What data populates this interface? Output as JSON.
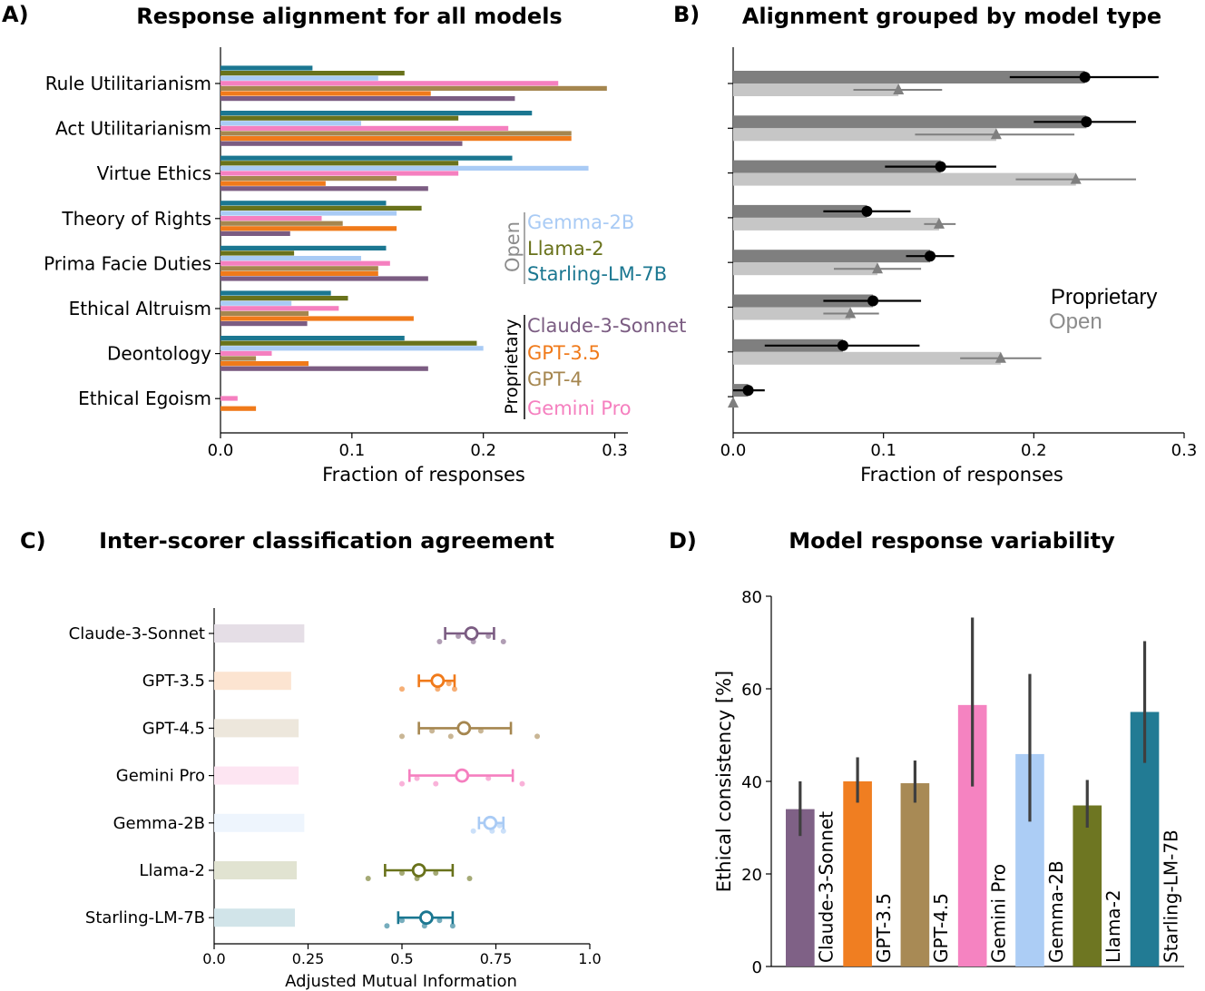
{
  "colors": {
    "Claude-3-Sonnet": "#7b5c82",
    "GPT-3.5": "#f07a1a",
    "GPT-4": "#a5864f",
    "GPT-4.5": "#a5864f",
    "Gemini Pro": "#f57fbf",
    "Gemma-2B": "#a9cbf5",
    "Llama-2": "#69721b",
    "Starling-LM-7B": "#1b7791",
    "proprietary_dark": "#7f7f7f",
    "open_light": "#c6c6c6"
  },
  "chart_data": [
    {
      "id": "A",
      "type": "bar",
      "orientation": "horizontal",
      "panel_label": "A)",
      "title": "Response alignment for all models",
      "xlabel": "Fraction of responses",
      "ylabel": "",
      "xlim": [
        0,
        0.31
      ],
      "xticks": [
        0.0,
        0.1,
        0.2,
        0.3
      ],
      "xticklabels": [
        "0.0",
        "0.1",
        "0.2",
        "0.3"
      ],
      "categories": [
        "Rule Utilitarianism",
        "Act Utilitarianism",
        "Virtue Ethics",
        "Theory of Rights",
        "Prima Facie Duties",
        "Ethical Altruism",
        "Deontology",
        "Ethical Egoism"
      ],
      "series": [
        {
          "name": "Starling-LM-7B",
          "values": [
            0.07,
            0.237,
            0.222,
            0.126,
            0.126,
            0.084,
            0.14,
            0.0
          ]
        },
        {
          "name": "Llama-2",
          "values": [
            0.14,
            0.181,
            0.181,
            0.153,
            0.056,
            0.097,
            0.195,
            0.0
          ]
        },
        {
          "name": "Gemma-2B",
          "values": [
            0.12,
            0.107,
            0.28,
            0.134,
            0.107,
            0.054,
            0.2,
            0.0
          ]
        },
        {
          "name": "Gemini Pro",
          "values": [
            0.257,
            0.219,
            0.181,
            0.077,
            0.129,
            0.09,
            0.039,
            0.013
          ]
        },
        {
          "name": "GPT-4",
          "values": [
            0.294,
            0.267,
            0.134,
            0.093,
            0.12,
            0.067,
            0.027,
            0.0
          ]
        },
        {
          "name": "GPT-3.5",
          "values": [
            0.16,
            0.267,
            0.08,
            0.134,
            0.12,
            0.147,
            0.067,
            0.027
          ]
        },
        {
          "name": "Claude-3-Sonnet",
          "values": [
            0.224,
            0.184,
            0.158,
            0.053,
            0.158,
            0.066,
            0.158,
            0.0
          ]
        }
      ],
      "legend": {
        "position": "right",
        "groups": [
          {
            "label": "Open",
            "entries": [
              "Gemma-2B",
              "Llama-2",
              "Starling-LM-7B"
            ]
          },
          {
            "label": "Proprietary",
            "entries": [
              "Claude-3-Sonnet",
              "GPT-3.5",
              "GPT-4",
              "Gemini Pro"
            ]
          }
        ]
      }
    },
    {
      "id": "B",
      "type": "bar",
      "orientation": "horizontal",
      "panel_label": "B)",
      "title": "Alignment grouped by model type",
      "xlabel": "Fraction of responses",
      "ylabel": "",
      "xlim": [
        0,
        0.3
      ],
      "xticks": [
        0.0,
        0.1,
        0.2,
        0.3
      ],
      "xticklabels": [
        "0.0",
        "0.1",
        "0.2",
        "0.3"
      ],
      "categories": [
        "Rule Utilitarianism",
        "Act Utilitarianism",
        "Virtue Ethics",
        "Theory of Rights",
        "Prima Facie Duties",
        "Ethical Altruism",
        "Deontology",
        "Ethical Egoism"
      ],
      "series": [
        {
          "name": "Proprietary",
          "values": [
            0.234,
            0.235,
            0.138,
            0.089,
            0.131,
            0.093,
            0.073,
            0.01
          ],
          "err_low": [
            0.184,
            0.2,
            0.101,
            0.06,
            0.115,
            0.06,
            0.021,
            0.0
          ],
          "err_high": [
            0.283,
            0.268,
            0.175,
            0.118,
            0.147,
            0.125,
            0.124,
            0.021
          ]
        },
        {
          "name": "Open",
          "values": [
            0.11,
            0.175,
            0.228,
            0.137,
            0.096,
            0.078,
            0.178,
            0.0
          ],
          "err_low": [
            0.08,
            0.121,
            0.188,
            0.127,
            0.067,
            0.06,
            0.151,
            0.0
          ],
          "err_high": [
            0.139,
            0.227,
            0.268,
            0.148,
            0.125,
            0.097,
            0.205,
            0.0
          ]
        }
      ],
      "legend": {
        "position": "right",
        "entries": [
          "Proprietary",
          "Open"
        ]
      }
    },
    {
      "id": "C",
      "type": "scatter",
      "panel_label": "C)",
      "title": "Inter-scorer classification agreement",
      "xlabel": "Adjusted Mutual Information",
      "ylabel": "",
      "xlim": [
        0,
        1.0
      ],
      "xticks": [
        0.0,
        0.25,
        0.5,
        0.75,
        1.0
      ],
      "xticklabels": [
        "0.0",
        "0.25",
        "0.5",
        "0.75",
        "1.0"
      ],
      "categories": [
        "Claude-3-Sonnet",
        "GPT-3.5",
        "GPT-4.5",
        "Gemini Pro",
        "Gemma-2B",
        "Llama-2",
        "Starling-LM-7B"
      ],
      "baseline": [
        0.24,
        0.205,
        0.225,
        0.225,
        0.24,
        0.22,
        0.215
      ],
      "mean": [
        0.685,
        0.595,
        0.665,
        0.66,
        0.735,
        0.545,
        0.565
      ],
      "err_low": [
        0.615,
        0.545,
        0.545,
        0.52,
        0.705,
        0.455,
        0.49
      ],
      "err_high": [
        0.745,
        0.64,
        0.79,
        0.795,
        0.77,
        0.635,
        0.635
      ],
      "points": [
        [
          0.6,
          0.65,
          0.69,
          0.73,
          0.77
        ],
        [
          0.5,
          0.59,
          0.595,
          0.625,
          0.64
        ],
        [
          0.5,
          0.58,
          0.63,
          0.71,
          0.86
        ],
        [
          0.5,
          0.54,
          0.59,
          0.73,
          0.82
        ],
        [
          0.69,
          0.73,
          0.74,
          0.76,
          0.77
        ],
        [
          0.41,
          0.5,
          0.54,
          0.59,
          0.68
        ],
        [
          0.46,
          0.5,
          0.56,
          0.6,
          0.635
        ]
      ]
    },
    {
      "id": "D",
      "type": "bar",
      "panel_label": "D)",
      "title": "Model response variability",
      "xlabel": "",
      "ylabel": "Ethical consistency [%]",
      "ylim": [
        0,
        80
      ],
      "yticks": [
        0,
        20,
        40,
        60,
        80
      ],
      "yticklabels": [
        "0",
        "20",
        "40",
        "60",
        "80"
      ],
      "categories": [
        "Claude-3-Sonnet",
        "GPT-3.5",
        "GPT-4.5",
        "Gemini Pro",
        "Gemma-2B",
        "Llama-2",
        "Starling-LM-7B"
      ],
      "values": [
        34,
        40,
        39.6,
        56.5,
        45.9,
        34.8,
        55
      ],
      "err_low": [
        28.2,
        35.4,
        35.4,
        38.9,
        31.3,
        30,
        44
      ],
      "err_high": [
        40,
        45.2,
        44.5,
        75.4,
        63.2,
        40.3,
        70.3
      ]
    }
  ]
}
